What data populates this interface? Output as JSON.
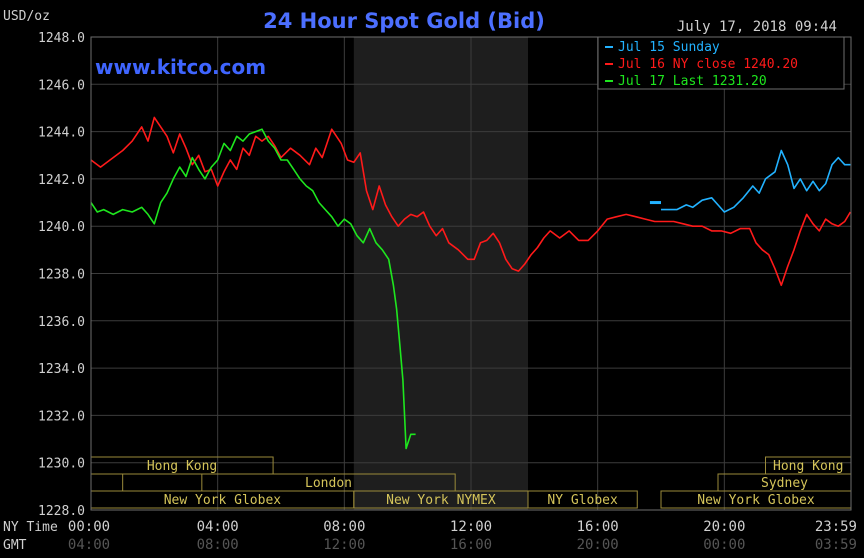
{
  "chart_data": {
    "type": "line",
    "title": "24 Hour Spot Gold (Bid)",
    "unit_label": "USD/oz",
    "watermark": "www.kitco.com",
    "timestamp": "July 17, 2018 09:44",
    "ylim": [
      1228,
      1248
    ],
    "y_ticks": [
      "1248.0",
      "1246.0",
      "1244.0",
      "1242.0",
      "1240.0",
      "1238.0",
      "1236.0",
      "1234.0",
      "1232.0",
      "1230.0",
      "1228.0"
    ],
    "xlim": [
      0,
      24
    ],
    "x_tick_hours": [
      0,
      4,
      8,
      12,
      16,
      20,
      24
    ],
    "ny_time_label": "NY Time",
    "gmt_label": "GMT",
    "ny_time_ticks": [
      "00:00",
      "04:00",
      "08:00",
      "12:00",
      "16:00",
      "20:00",
      "23:59"
    ],
    "gmt_ticks": [
      "04:00",
      "08:00",
      "12:00",
      "16:00",
      "20:00",
      "00:00",
      "03:59"
    ],
    "shaded_range": [
      8.3,
      13.8
    ],
    "grid": true,
    "legend_position": "top-right",
    "series": [
      {
        "name": "Jul 15 Sunday",
        "color": "#22b2ff",
        "x": [
          18.0,
          18.5,
          18.8,
          19.0,
          19.3,
          19.6,
          19.8,
          20.0,
          20.3,
          20.6,
          20.9,
          21.1,
          21.3,
          21.6,
          21.8,
          22.0,
          22.2,
          22.4,
          22.6,
          22.8,
          23.0,
          23.2,
          23.4,
          23.6,
          23.8,
          23.98
        ],
        "y": [
          1240.7,
          1240.7,
          1240.9,
          1240.8,
          1241.1,
          1241.2,
          1240.9,
          1240.6,
          1240.8,
          1241.2,
          1241.7,
          1241.4,
          1242.0,
          1242.3,
          1243.2,
          1242.6,
          1241.6,
          1242.0,
          1241.5,
          1241.9,
          1241.5,
          1241.8,
          1242.6,
          1242.9,
          1242.6,
          1242.6
        ]
      },
      {
        "name": "Jul 16 NY close 1240.20",
        "color": "#ff1a1a",
        "x": [
          0,
          0.3,
          0.6,
          1.0,
          1.3,
          1.6,
          1.8,
          2.0,
          2.2,
          2.4,
          2.6,
          2.8,
          3.0,
          3.2,
          3.4,
          3.6,
          3.8,
          4.0,
          4.2,
          4.4,
          4.6,
          4.8,
          5.0,
          5.2,
          5.4,
          5.6,
          5.8,
          6.0,
          6.3,
          6.6,
          6.9,
          7.1,
          7.3,
          7.6,
          7.9,
          8.1,
          8.3,
          8.5,
          8.7,
          8.9,
          9.1,
          9.3,
          9.5,
          9.7,
          9.9,
          10.1,
          10.3,
          10.5,
          10.7,
          10.9,
          11.1,
          11.3,
          11.6,
          11.9,
          12.1,
          12.3,
          12.5,
          12.7,
          12.9,
          13.1,
          13.3,
          13.5,
          13.7,
          13.9,
          14.1,
          14.3,
          14.5,
          14.8,
          15.1,
          15.4,
          15.7,
          16.0,
          16.3,
          16.6,
          16.9,
          17.2,
          17.5,
          17.8,
          18.1,
          18.4,
          18.7,
          19.0,
          19.3,
          19.6,
          19.9,
          20.2,
          20.5,
          20.8,
          21.0,
          21.2,
          21.4,
          21.6,
          21.8,
          22.0,
          22.2,
          22.4,
          22.6,
          22.8,
          23.0,
          23.2,
          23.4,
          23.6,
          23.8,
          23.98
        ],
        "y": [
          1242.8,
          1242.5,
          1242.8,
          1243.2,
          1243.6,
          1244.2,
          1243.6,
          1244.6,
          1244.2,
          1243.8,
          1243.1,
          1243.9,
          1243.3,
          1242.6,
          1243.0,
          1242.3,
          1242.4,
          1241.7,
          1242.3,
          1242.8,
          1242.4,
          1243.3,
          1243.0,
          1243.8,
          1243.6,
          1243.8,
          1243.4,
          1242.9,
          1243.3,
          1243.0,
          1242.6,
          1243.3,
          1242.9,
          1244.1,
          1243.5,
          1242.8,
          1242.7,
          1243.1,
          1241.5,
          1240.7,
          1241.7,
          1240.9,
          1240.4,
          1240.0,
          1240.3,
          1240.5,
          1240.4,
          1240.6,
          1240.0,
          1239.6,
          1239.9,
          1239.3,
          1239.0,
          1238.6,
          1238.6,
          1239.3,
          1239.4,
          1239.7,
          1239.3,
          1238.6,
          1238.2,
          1238.1,
          1238.4,
          1238.8,
          1239.1,
          1239.5,
          1239.8,
          1239.5,
          1239.8,
          1239.4,
          1239.4,
          1239.8,
          1240.3,
          1240.4,
          1240.5,
          1240.4,
          1240.3,
          1240.2,
          1240.2,
          1240.2,
          1240.1,
          1240.0,
          1240.0,
          1239.8,
          1239.8,
          1239.7,
          1239.9,
          1239.9,
          1239.3,
          1239.0,
          1238.8,
          1238.2,
          1237.5,
          1238.3,
          1239.0,
          1239.8,
          1240.5,
          1240.1,
          1239.8,
          1240.3,
          1240.1,
          1240.0,
          1240.2,
          1240.6
        ]
      },
      {
        "name": "Jul 17 Last 1231.20",
        "color": "#1ee61e",
        "x": [
          0,
          0.2,
          0.4,
          0.7,
          1.0,
          1.3,
          1.6,
          1.8,
          2.0,
          2.2,
          2.4,
          2.6,
          2.8,
          3.0,
          3.2,
          3.4,
          3.6,
          3.8,
          4.0,
          4.2,
          4.4,
          4.6,
          4.8,
          5.0,
          5.2,
          5.4,
          5.6,
          5.8,
          6.0,
          6.2,
          6.4,
          6.6,
          6.8,
          7.0,
          7.2,
          7.4,
          7.6,
          7.8,
          8.0,
          8.2,
          8.4,
          8.6,
          8.8,
          9.0,
          9.2,
          9.4,
          9.55,
          9.65,
          9.75,
          9.85,
          9.95,
          10.1,
          10.25
        ],
        "y": [
          1241.0,
          1240.6,
          1240.7,
          1240.5,
          1240.7,
          1240.6,
          1240.8,
          1240.5,
          1240.1,
          1241.0,
          1241.4,
          1242.0,
          1242.5,
          1242.1,
          1242.9,
          1242.4,
          1242.0,
          1242.5,
          1242.8,
          1243.5,
          1243.2,
          1243.8,
          1243.6,
          1243.9,
          1244.0,
          1244.1,
          1243.6,
          1243.3,
          1242.8,
          1242.8,
          1242.4,
          1242.0,
          1241.7,
          1241.5,
          1241.0,
          1240.7,
          1240.4,
          1240.0,
          1240.3,
          1240.1,
          1239.6,
          1239.3,
          1239.9,
          1239.3,
          1239.0,
          1238.6,
          1237.5,
          1236.5,
          1235.0,
          1233.5,
          1230.6,
          1231.2,
          1231.2
        ]
      }
    ],
    "market_bands": [
      {
        "label": "Hong Kong",
        "row": 0,
        "start": 0,
        "end": 5.75
      },
      {
        "label": "Hong Kong",
        "row": 0,
        "start": 21.3,
        "end": 24
      },
      {
        "label": "Sydney",
        "row": 1,
        "start": 19.8,
        "end": 24
      },
      {
        "label": "London",
        "row": 1,
        "start": 3.5,
        "end": 11.5
      },
      {
        "label": "",
        "row": 1,
        "start": 0,
        "end": 1
      },
      {
        "label": "New York Globex",
        "row": 2,
        "start": 0,
        "end": 8.3
      },
      {
        "label": "New York NYMEX",
        "row": 2,
        "start": 8.3,
        "end": 13.8
      },
      {
        "label": "NY Globex",
        "row": 2,
        "start": 13.8,
        "end": 17.25
      },
      {
        "label": "New York Globex",
        "row": 2,
        "start": 18.0,
        "end": 24
      }
    ]
  }
}
